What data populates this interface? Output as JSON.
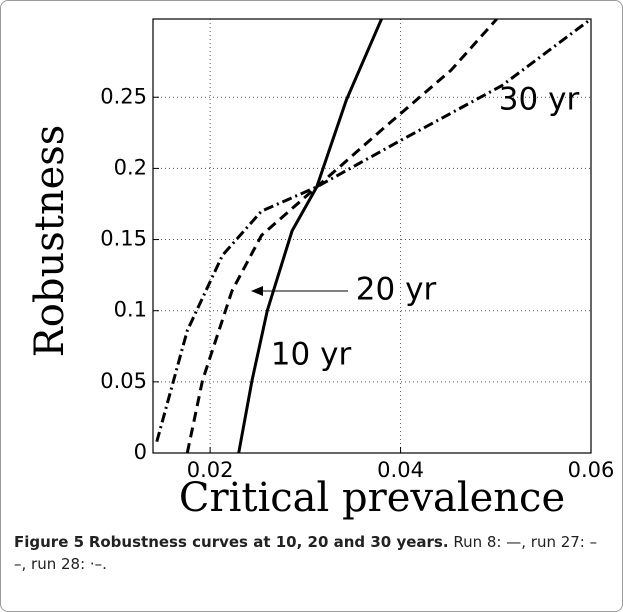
{
  "chart_data": {
    "type": "line",
    "xlabel": "Critical prevalence",
    "ylabel": "Robustness",
    "xlim": [
      0.014,
      0.06
    ],
    "ylim": [
      0,
      0.305
    ],
    "xticks": [
      0.02,
      0.04,
      0.06
    ],
    "yticks": [
      0,
      0.05,
      0.1,
      0.15,
      0.2,
      0.25
    ],
    "grid": true,
    "series": [
      {
        "color": "#000000",
        "style": "solid",
        "x": [
          0.023,
          0.0244,
          0.026,
          0.0286,
          0.0312,
          0.0343,
          0.038
        ],
        "values": [
          0,
          0.051,
          0.1,
          0.156,
          0.187,
          0.248,
          0.305
        ]
      },
      {
        "color": "#000000",
        "style": "dashed",
        "x": [
          0.0176,
          0.0192,
          0.0223,
          0.0254,
          0.0312,
          0.038,
          0.0453,
          0.0501
        ],
        "values": [
          0,
          0.051,
          0.114,
          0.153,
          0.187,
          0.227,
          0.269,
          0.305
        ]
      },
      {
        "color": "#000000",
        "style": "dashdot",
        "x": [
          0.0144,
          0.0176,
          0.0213,
          0.0254,
          0.0312,
          0.0401,
          0.0506,
          0.06
        ],
        "values": [
          0.008,
          0.086,
          0.139,
          0.17,
          0.187,
          0.22,
          0.258,
          0.305
        ]
      }
    ],
    "annotations": [
      "30 yr",
      "20 yr",
      "10 yr"
    ]
  },
  "caption": {
    "label": "Figure 5",
    "title": "Robustness curves at 10, 20 and 30 years.",
    "text": "Run 8: —, run 27: – –, run 28: ·–."
  }
}
